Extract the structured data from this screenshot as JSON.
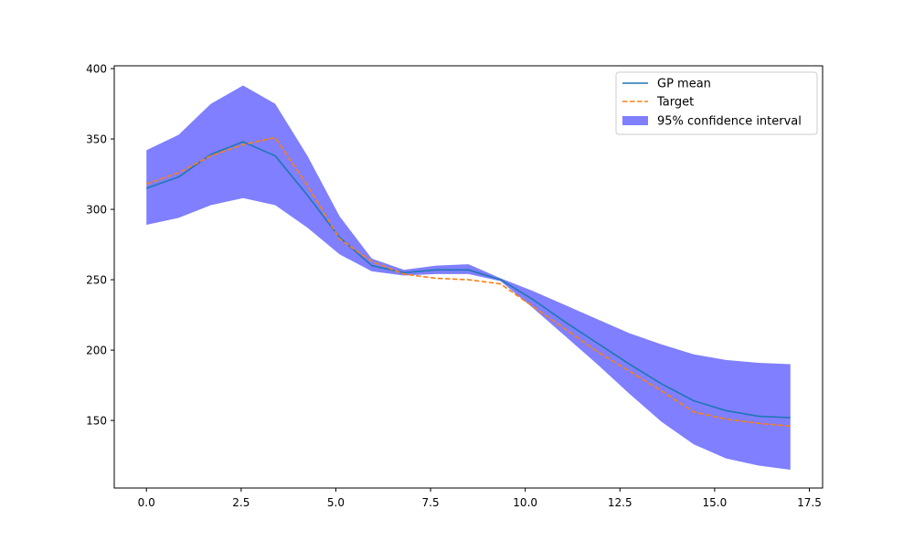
{
  "chart_data": {
    "type": "line",
    "title": "",
    "xlabel": "",
    "ylabel": "",
    "xlim": [
      -0.85,
      17.85
    ],
    "ylim": [
      102,
      402
    ],
    "grid": false,
    "legend_position": "top-right",
    "x_ticks": [
      0,
      2.5,
      5,
      7.5,
      10,
      12.5,
      15,
      17.5
    ],
    "x_tick_labels": [
      "0.0",
      "2.5",
      "5.0",
      "7.5",
      "10.0",
      "12.5",
      "15.0",
      "17.5"
    ],
    "y_ticks": [
      150,
      200,
      250,
      300,
      350,
      400
    ],
    "y_tick_labels": [
      "150",
      "200",
      "250",
      "300",
      "350",
      "400"
    ],
    "x": [
      0,
      0.85,
      1.7,
      2.55,
      3.4,
      4.25,
      5.1,
      5.95,
      6.8,
      7.65,
      8.5,
      9.35,
      10.2,
      11.05,
      11.9,
      12.75,
      13.6,
      14.45,
      15.3,
      16.15,
      17.0
    ],
    "series": [
      {
        "name": "GP mean",
        "style": "solid",
        "color": "#1f77b4",
        "values": [
          315,
          323,
          339,
          348,
          338,
          310,
          280,
          260,
          255,
          257,
          257,
          250,
          236,
          220,
          205,
          190,
          176,
          164,
          157,
          153,
          152
        ]
      },
      {
        "name": "Target",
        "style": "dashed",
        "color": "#ff7f0e",
        "values": [
          318,
          326,
          338,
          346,
          351,
          317,
          279,
          263,
          254,
          251,
          250,
          247,
          231,
          215,
          199,
          185,
          171,
          156,
          151,
          148,
          146
        ]
      }
    ],
    "band": {
      "name": "95% confidence interval",
      "color": "#0000ff",
      "opacity": 0.5,
      "upper": [
        342,
        353,
        375,
        388,
        375,
        338,
        295,
        265,
        257,
        260,
        261,
        251,
        242,
        232,
        222,
        212,
        204,
        197,
        193,
        191,
        190
      ],
      "lower": [
        289,
        294,
        303,
        308,
        303,
        287,
        268,
        256,
        253,
        254,
        254,
        249,
        230,
        210,
        190,
        169,
        149,
        133,
        123,
        118,
        115
      ]
    },
    "legend": [
      "GP mean",
      "Target",
      "95% confidence interval"
    ]
  }
}
